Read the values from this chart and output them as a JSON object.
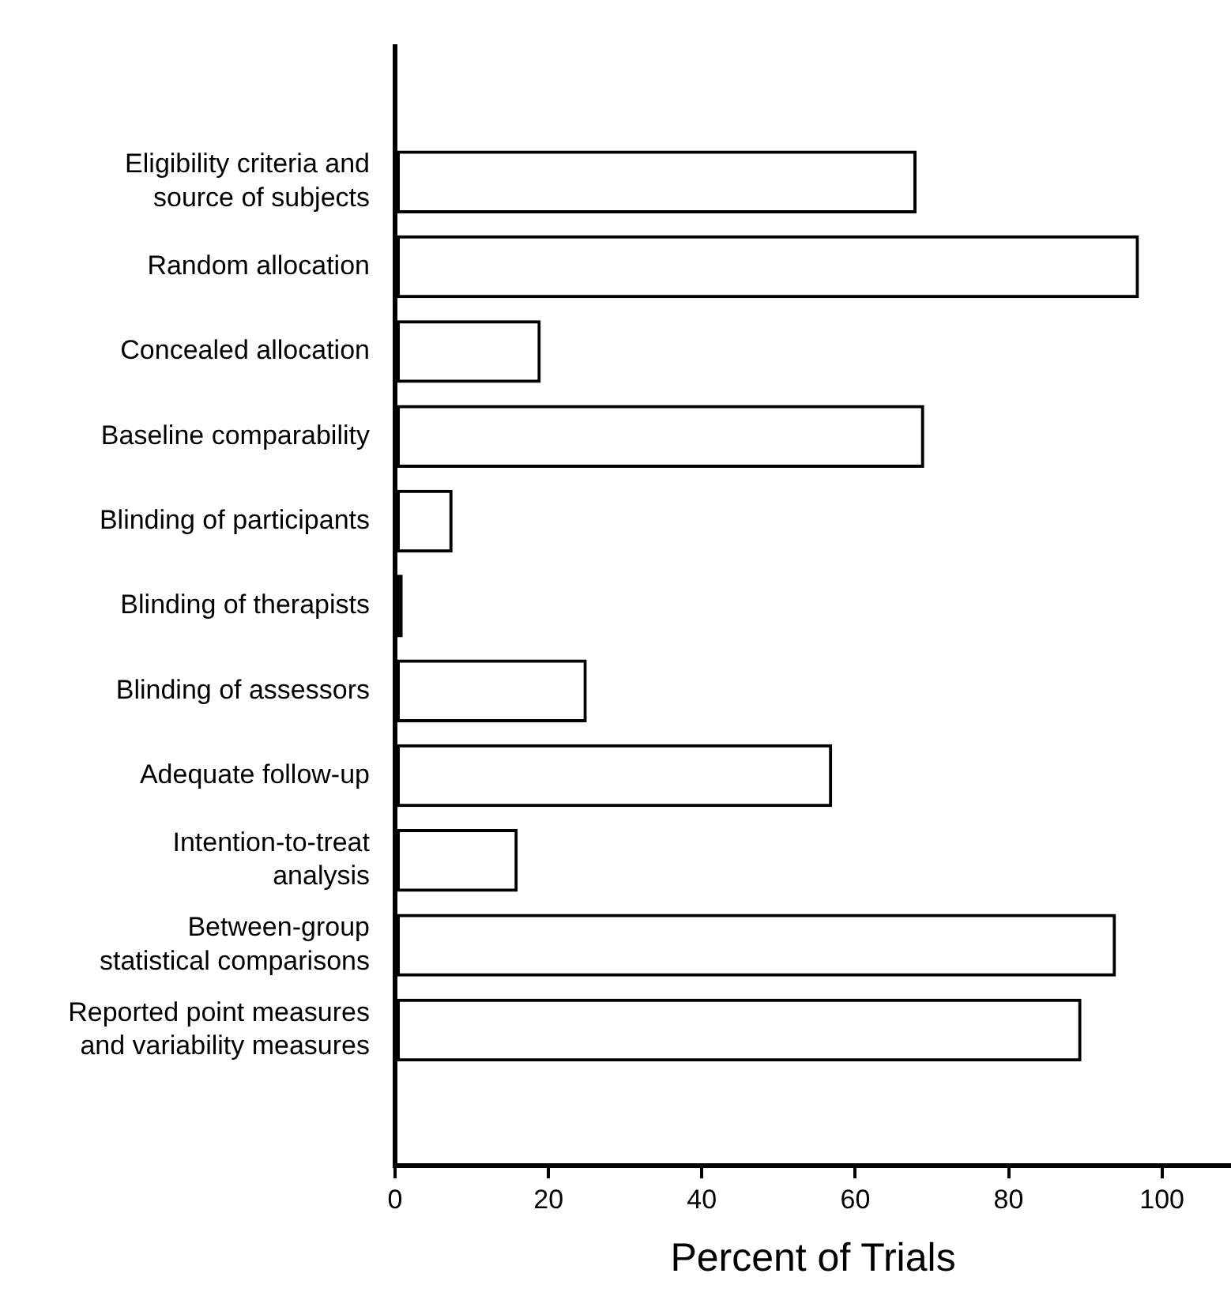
{
  "chart_data": {
    "type": "bar",
    "orientation": "horizontal",
    "xlabel": "Percent of Trials",
    "categories": [
      "Eligibility criteria and\nsource of subjects",
      "Random allocation",
      "Concealed allocation",
      "Baseline comparability",
      "Blinding of participants",
      "Blinding of therapists",
      "Blinding of assessors",
      "Adequate follow-up",
      "Intention-to-treat\nanalysis",
      "Between-group\nstatistical comparisons",
      "Reported point measures\nand variability measures"
    ],
    "values": [
      68,
      97,
      19,
      69,
      7.5,
      1,
      25,
      57,
      16,
      94,
      89.5
    ],
    "color": "#000000",
    "xlim": [
      0,
      109
    ],
    "xticks": [
      0,
      20,
      40,
      60,
      80,
      100
    ]
  }
}
